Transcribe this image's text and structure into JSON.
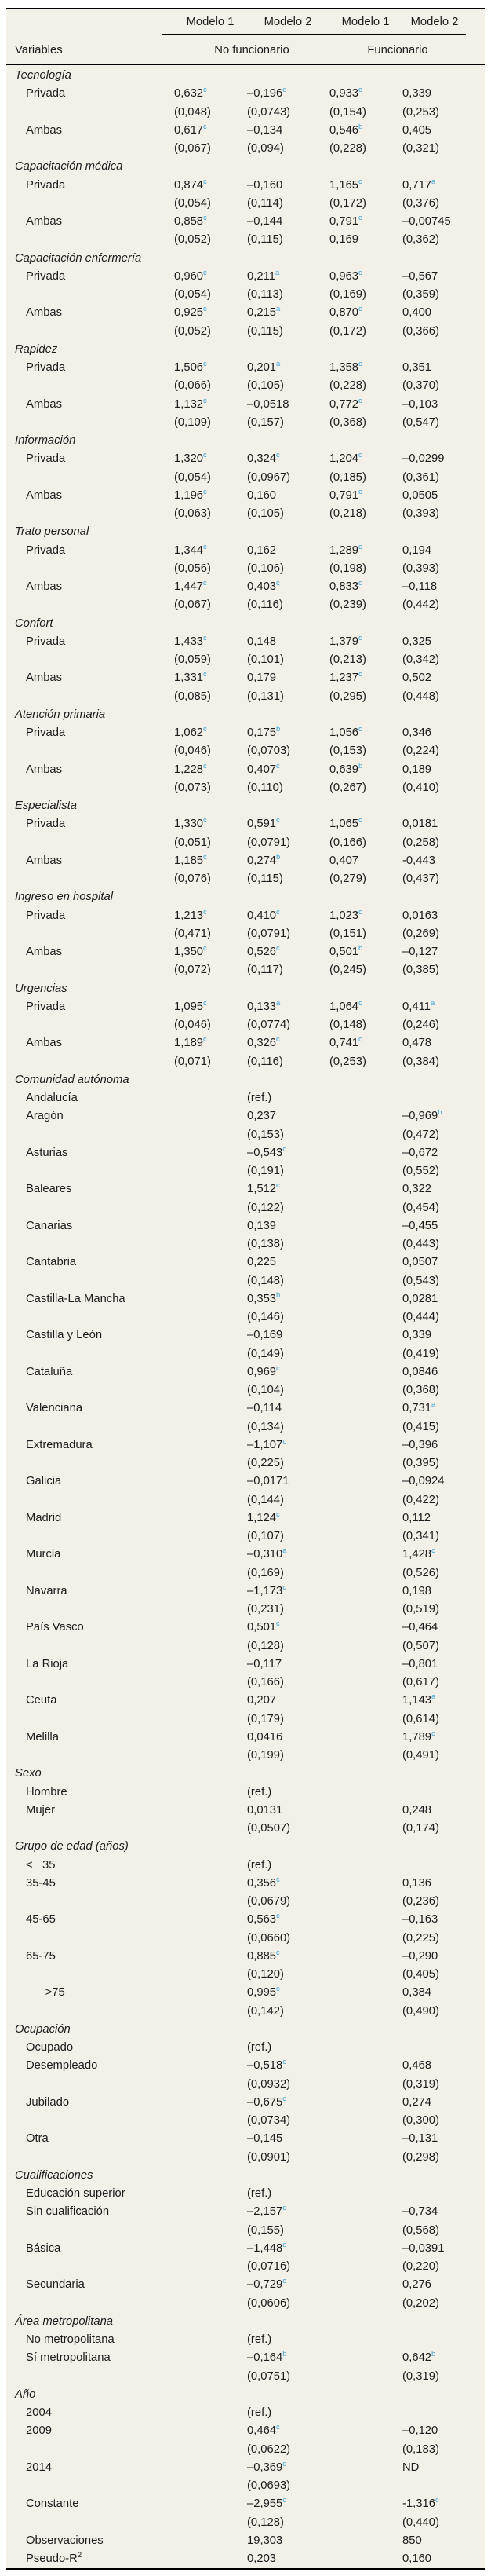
{
  "colors": {
    "background": "#f3f0e7",
    "significance_superscript": "#41a5da",
    "text": "#1c1c1c",
    "rule": "#000000"
  },
  "header": {
    "variables_label": "Variables",
    "models": [
      "Modelo 1",
      "Modelo 2",
      "Modelo 1",
      "Modelo 2"
    ],
    "groups": [
      "No funcionario",
      "Funcionario"
    ]
  },
  "sections": [
    {
      "title": "Tecnología",
      "rows": [
        {
          "label": "Privada",
          "values": [
            "0,632^c",
            "–0,196^c",
            "0,933^c",
            "0,339"
          ],
          "se": [
            "(0,048)",
            "(0,0743)",
            "(0,154)",
            "(0,253)"
          ]
        },
        {
          "label": "Ambas",
          "values": [
            "0,617^c",
            "–0,134",
            "0,546^b",
            "0,405"
          ],
          "se": [
            "(0,067)",
            "(0,094)",
            "(0,228)",
            "(0,321)"
          ]
        }
      ]
    },
    {
      "title": "Capacitación médica",
      "rows": [
        {
          "label": "Privada",
          "values": [
            "0,874^c",
            "–0,160",
            "1,165^c",
            "0,717^a"
          ],
          "se": [
            "(0,054)",
            "(0,114)",
            "(0,172)",
            "(0,376)"
          ]
        },
        {
          "label": "Ambas",
          "values": [
            "0,858^c",
            "–0,144",
            "0,791^c",
            "–0,00745"
          ],
          "se": [
            "(0,052)",
            "(0,115)",
            "0,169",
            "(0,362)"
          ]
        }
      ]
    },
    {
      "title": "Capacitación enfermería",
      "rows": [
        {
          "label": "Privada",
          "values": [
            "0,960^c",
            "0,211^a",
            "0,963^c",
            "–0,567"
          ],
          "se": [
            "(0,054)",
            "(0,113)",
            "(0,169)",
            "(0,359)"
          ]
        },
        {
          "label": "Ambas",
          "values": [
            "0,925^c",
            "0,215^a",
            "0,870^c",
            "0,400"
          ],
          "se": [
            "(0,052)",
            "(0,115)",
            "(0,172)",
            "(0,366)"
          ]
        }
      ]
    },
    {
      "title": "Rapidez",
      "rows": [
        {
          "label": "Privada",
          "values": [
            "1,506^c",
            "0,201^a",
            "1,358^c",
            "0,351"
          ],
          "se": [
            "(0,066)",
            "(0,105)",
            "(0,228)",
            "(0,370)"
          ]
        },
        {
          "label": "Ambas",
          "values": [
            "1,132^c",
            "–0,0518",
            "0,772^c",
            "–0,103"
          ],
          "se": [
            "(0,109)",
            "(0,157)",
            "(0,368)",
            "(0,547)"
          ]
        }
      ]
    },
    {
      "title": "Información",
      "rows": [
        {
          "label": "Privada",
          "values": [
            "1,320^c",
            "0,324^c",
            "1,204^c",
            "–0,0299"
          ],
          "se": [
            "(0,054)",
            "(0,0967)",
            "(0,185)",
            "(0,361)"
          ]
        },
        {
          "label": "Ambas",
          "values": [
            "1,196^c",
            "0,160",
            "0,791^c",
            "0,0505"
          ],
          "se": [
            "(0,063)",
            "(0,105)",
            "(0,218)",
            "(0,393)"
          ]
        }
      ]
    },
    {
      "title": "Trato personal",
      "rows": [
        {
          "label": "Privada",
          "values": [
            "1,344^c",
            "0,162",
            "1,289^c",
            "0,194"
          ],
          "se": [
            "(0,056)",
            "(0,106)",
            "(0,198)",
            "(0,393)"
          ]
        },
        {
          "label": "Ambas",
          "values": [
            "1,447^c",
            "0,403^c",
            "0,833^c",
            "–0,118"
          ],
          "se": [
            "(0,067)",
            "(0,116)",
            "(0,239)",
            "(0,442)"
          ]
        }
      ]
    },
    {
      "title": "Confort",
      "rows": [
        {
          "label": "Privada",
          "values": [
            "1,433^c",
            "0,148",
            "1,379^c",
            "0,325"
          ],
          "se": [
            "(0,059)",
            "(0,101)",
            "(0,213)",
            "(0,342)"
          ]
        },
        {
          "label": "Ambas",
          "values": [
            "1,331^c",
            "0,179",
            "1,237^c",
            "0,502"
          ],
          "se": [
            "(0,085)",
            "(0,131)",
            "(0,295)",
            "(0,448)"
          ]
        }
      ]
    },
    {
      "title": "Atención primaria",
      "rows": [
        {
          "label": "Privada",
          "values": [
            "1,062^c",
            "0,175^b",
            "1,056^c",
            "0,346"
          ],
          "se": [
            "(0,046)",
            "(0,0703)",
            "(0,153)",
            "(0,224)"
          ]
        },
        {
          "label": "Ambas",
          "values": [
            "1,228^c",
            "0,407^c",
            "0,639^b",
            "0,189"
          ],
          "se": [
            "(0,073)",
            "(0,110)",
            "(0,267)",
            "(0,410)"
          ]
        }
      ]
    },
    {
      "title": "Especialista",
      "rows": [
        {
          "label": "Privada",
          "values": [
            "1,330^c",
            "0,591^c",
            "1,065^c",
            "0,0181"
          ],
          "se": [
            "(0,051)",
            "(0,0791)",
            "(0,166)",
            "(0,258)"
          ]
        },
        {
          "label": "Ambas",
          "values": [
            "1,185^c",
            "0,274^b",
            "0,407",
            "-0,443"
          ],
          "se": [
            "(0,076)",
            "(0,115)",
            "(0,279)",
            "(0,437)"
          ]
        }
      ]
    },
    {
      "title": "Ingreso en hospital",
      "rows": [
        {
          "label": "Privada",
          "values": [
            "1,213^c",
            "0,410^c",
            "1,023^c",
            "0,0163"
          ],
          "se": [
            "(0,471)",
            "(0,0791)",
            "(0,151)",
            "(0,269)"
          ]
        },
        {
          "label": "Ambas",
          "values": [
            "1,350^c",
            "0,526^c",
            "0,501^b",
            "–0,127"
          ],
          "se": [
            "(0,072)",
            "(0,117)",
            "(0,245)",
            "(0,385)"
          ]
        }
      ]
    },
    {
      "title": "Urgencias",
      "rows": [
        {
          "label": "Privada",
          "values": [
            "1,095^c",
            "0,133^a",
            "1,064^c",
            "0,411^a"
          ],
          "se": [
            "(0,046)",
            "(0,0774)",
            "(0,148)",
            "(0,246)"
          ]
        },
        {
          "label": "Ambas",
          "values": [
            "1,189^c",
            "0,326^c",
            "0,741^c",
            "0,478"
          ],
          "se": [
            "(0,071)",
            "(0,116)",
            "(0,253)",
            "(0,384)"
          ]
        }
      ]
    },
    {
      "title": "Comunidad autónoma",
      "rows": [
        {
          "label": "Andalucía",
          "values": [
            "",
            "(ref.)",
            "",
            ""
          ]
        },
        {
          "label": "Aragón",
          "values": [
            "",
            "0,237",
            "",
            "–0,969^b"
          ],
          "se": [
            "",
            "(0,153)",
            "",
            "(0,472)"
          ]
        },
        {
          "label": "Asturias",
          "values": [
            "",
            "–0,543^c",
            "",
            "–0,672"
          ],
          "se": [
            "",
            "(0,191)",
            "",
            "(0,552)"
          ]
        },
        {
          "label": "Baleares",
          "values": [
            "",
            "1,512^c",
            "",
            "0,322"
          ],
          "se": [
            "",
            "(0,122)",
            "",
            "(0,454)"
          ]
        },
        {
          "label": "Canarias",
          "values": [
            "",
            "0,139",
            "",
            "–0,455"
          ],
          "se": [
            "",
            "(0,138)",
            "",
            "(0,443)"
          ]
        },
        {
          "label": "Cantabria",
          "values": [
            "",
            "0,225",
            "",
            "0,0507"
          ],
          "se": [
            "",
            "(0,148)",
            "",
            "(0,543)"
          ]
        },
        {
          "label": "Castilla-La Mancha",
          "values": [
            "",
            "0,353^b",
            "",
            "0,0281"
          ],
          "se": [
            "",
            "(0,146)",
            "",
            "(0,444)"
          ]
        },
        {
          "label": "Castilla y León",
          "values": [
            "",
            "–0,169",
            "",
            "0,339"
          ],
          "se": [
            "",
            "(0,149)",
            "",
            "(0,419)"
          ]
        },
        {
          "label": "Cataluña",
          "values": [
            "",
            "0,969^c",
            "",
            "0,0846"
          ],
          "se": [
            "",
            "(0,104)",
            "",
            "(0,368)"
          ]
        },
        {
          "label": "Valenciana",
          "values": [
            "",
            "–0,114",
            "",
            "0,731^a"
          ],
          "se": [
            "",
            "(0,134)",
            "",
            "(0,415)"
          ]
        },
        {
          "label": "Extremadura",
          "values": [
            "",
            "–1,107^c",
            "",
            "–0,396"
          ],
          "se": [
            "",
            "(0,225)",
            "",
            "(0,395)"
          ]
        },
        {
          "label": "Galicia",
          "values": [
            "",
            "–0,0171",
            "",
            "–0,0924"
          ],
          "se": [
            "",
            "(0,144)",
            "",
            "(0,422)"
          ]
        },
        {
          "label": "Madrid",
          "values": [
            "",
            "1,124^c",
            "",
            "0,112"
          ],
          "se": [
            "",
            "(0,107)",
            "",
            "(0,341)"
          ]
        },
        {
          "label": "Murcia",
          "values": [
            "",
            "–0,310^a",
            "",
            "1,428^c"
          ],
          "se": [
            "",
            "(0,169)",
            "",
            "(0,526)"
          ]
        },
        {
          "label": "Navarra",
          "values": [
            "",
            "–1,173^c",
            "",
            "0,198"
          ],
          "se": [
            "",
            "(0,231)",
            "",
            "(0,519)"
          ]
        },
        {
          "label": "País Vasco",
          "values": [
            "",
            "0,501^c",
            "",
            "–0,464"
          ],
          "se": [
            "",
            "(0,128)",
            "",
            "(0,507)"
          ]
        },
        {
          "label": "La Rioja",
          "values": [
            "",
            "–0,117",
            "",
            "–0,801"
          ],
          "se": [
            "",
            "(0,166)",
            "",
            "(0,617)"
          ]
        },
        {
          "label": "Ceuta",
          "values": [
            "",
            "0,207",
            "",
            "1,143^a"
          ],
          "se": [
            "",
            "(0,179)",
            "",
            "(0,614)"
          ]
        },
        {
          "label": "Melilla",
          "values": [
            "",
            "0,0416",
            "",
            "1,789^c"
          ],
          "se": [
            "",
            "(0,199)",
            "",
            "(0,491)"
          ]
        }
      ]
    },
    {
      "title": "Sexo",
      "rows": [
        {
          "label": "Hombre",
          "values": [
            "",
            "(ref.)",
            "",
            ""
          ]
        },
        {
          "label": "Mujer",
          "values": [
            "",
            "0,0131",
            "",
            "0,248"
          ],
          "se": [
            "",
            "(0,0507)",
            "",
            "(0,174)"
          ]
        }
      ]
    },
    {
      "title": "Grupo de edad (años)",
      "rows": [
        {
          "label": "<   35",
          "values": [
            "",
            "(ref.)",
            "",
            ""
          ]
        },
        {
          "label": "35-45",
          "values": [
            "",
            "0,356^c",
            "",
            "0,136"
          ],
          "se": [
            "",
            "(0,0679)",
            "",
            "(0,236)"
          ]
        },
        {
          "label": "45-65",
          "values": [
            "",
            "0,563^c",
            "",
            "–0,163"
          ],
          "se": [
            "",
            "(0,0660)",
            "",
            "(0,225)"
          ]
        },
        {
          "label": "65-75",
          "values": [
            "",
            "0,885^c",
            "",
            "–0,290"
          ],
          "se": [
            "",
            "(0,120)",
            "",
            "(0,405)"
          ]
        },
        {
          "label": "      >75",
          "values": [
            "",
            "0,995^c",
            "",
            "0,384"
          ],
          "se": [
            "",
            "(0,142)",
            "",
            "(0,490)"
          ]
        }
      ]
    },
    {
      "title": "Ocupación",
      "rows": [
        {
          "label": "Ocupado",
          "values": [
            "",
            "(ref.)",
            "",
            ""
          ]
        },
        {
          "label": "Desempleado",
          "values": [
            "",
            "–0,518^c",
            "",
            "0,468"
          ],
          "se": [
            "",
            "(0,0932)",
            "",
            "(0,319)"
          ]
        },
        {
          "label": "Jubilado",
          "values": [
            "",
            "–0,675^c",
            "",
            "0,274"
          ],
          "se": [
            "",
            "(0,0734)",
            "",
            "(0,300)"
          ]
        },
        {
          "label": "Otra",
          "values": [
            "",
            "–0,145",
            "",
            "–0,131"
          ],
          "se": [
            "",
            "(0,0901)",
            "",
            "(0,298)"
          ]
        }
      ]
    },
    {
      "title": "Cualificaciones",
      "rows": [
        {
          "label": "Educación superior",
          "values": [
            "",
            "(ref.)",
            "",
            ""
          ]
        },
        {
          "label": "Sin cualificación",
          "values": [
            "",
            "–2,157^c",
            "",
            "–0,734"
          ],
          "se": [
            "",
            "(0,155)",
            "",
            "(0,568)"
          ]
        },
        {
          "label": "Básica",
          "values": [
            "",
            "–1,448^c",
            "",
            "–0,0391"
          ],
          "se": [
            "",
            "(0,0716)",
            "",
            "(0,220)"
          ]
        },
        {
          "label": "Secundaria",
          "values": [
            "",
            "–0,729^c",
            "",
            "0,276"
          ],
          "se": [
            "",
            "(0,0606)",
            "",
            "(0,202)"
          ]
        }
      ]
    },
    {
      "title": "Área metropolitana",
      "rows": [
        {
          "label": "No metropolitana",
          "values": [
            "",
            "(ref.)",
            "",
            ""
          ]
        },
        {
          "label": "Sí metropolitana",
          "values": [
            "",
            "–0,164^b",
            "",
            "0,642^b"
          ],
          "se": [
            "",
            "(0,0751)",
            "",
            "(0,319)"
          ]
        }
      ]
    },
    {
      "title": "Año",
      "rows": [
        {
          "label": "2004",
          "values": [
            "",
            "(ref.)",
            "",
            ""
          ]
        },
        {
          "label": "2009",
          "values": [
            "",
            "0,464^c",
            "",
            "–0,120"
          ],
          "se": [
            "",
            "(0,0622)",
            "",
            "(0,183)"
          ]
        },
        {
          "label": "2014",
          "values": [
            "",
            "–0,369^c",
            "",
            "ND"
          ],
          "se": [
            "",
            "(0,0693)",
            "",
            ""
          ]
        }
      ]
    },
    {
      "title": "",
      "rows": [
        {
          "label": "Constante",
          "values": [
            "",
            "–2,955^c",
            "",
            "-1,316^c"
          ],
          "se": [
            "",
            "(0,128)",
            "",
            "(0,440)"
          ]
        },
        {
          "label": "Observaciones",
          "values": [
            "",
            "19,303",
            "",
            "850"
          ]
        },
        {
          "label": "Pseudo-R^2",
          "values": [
            "",
            "0,203",
            "",
            "0,160"
          ]
        }
      ]
    }
  ]
}
